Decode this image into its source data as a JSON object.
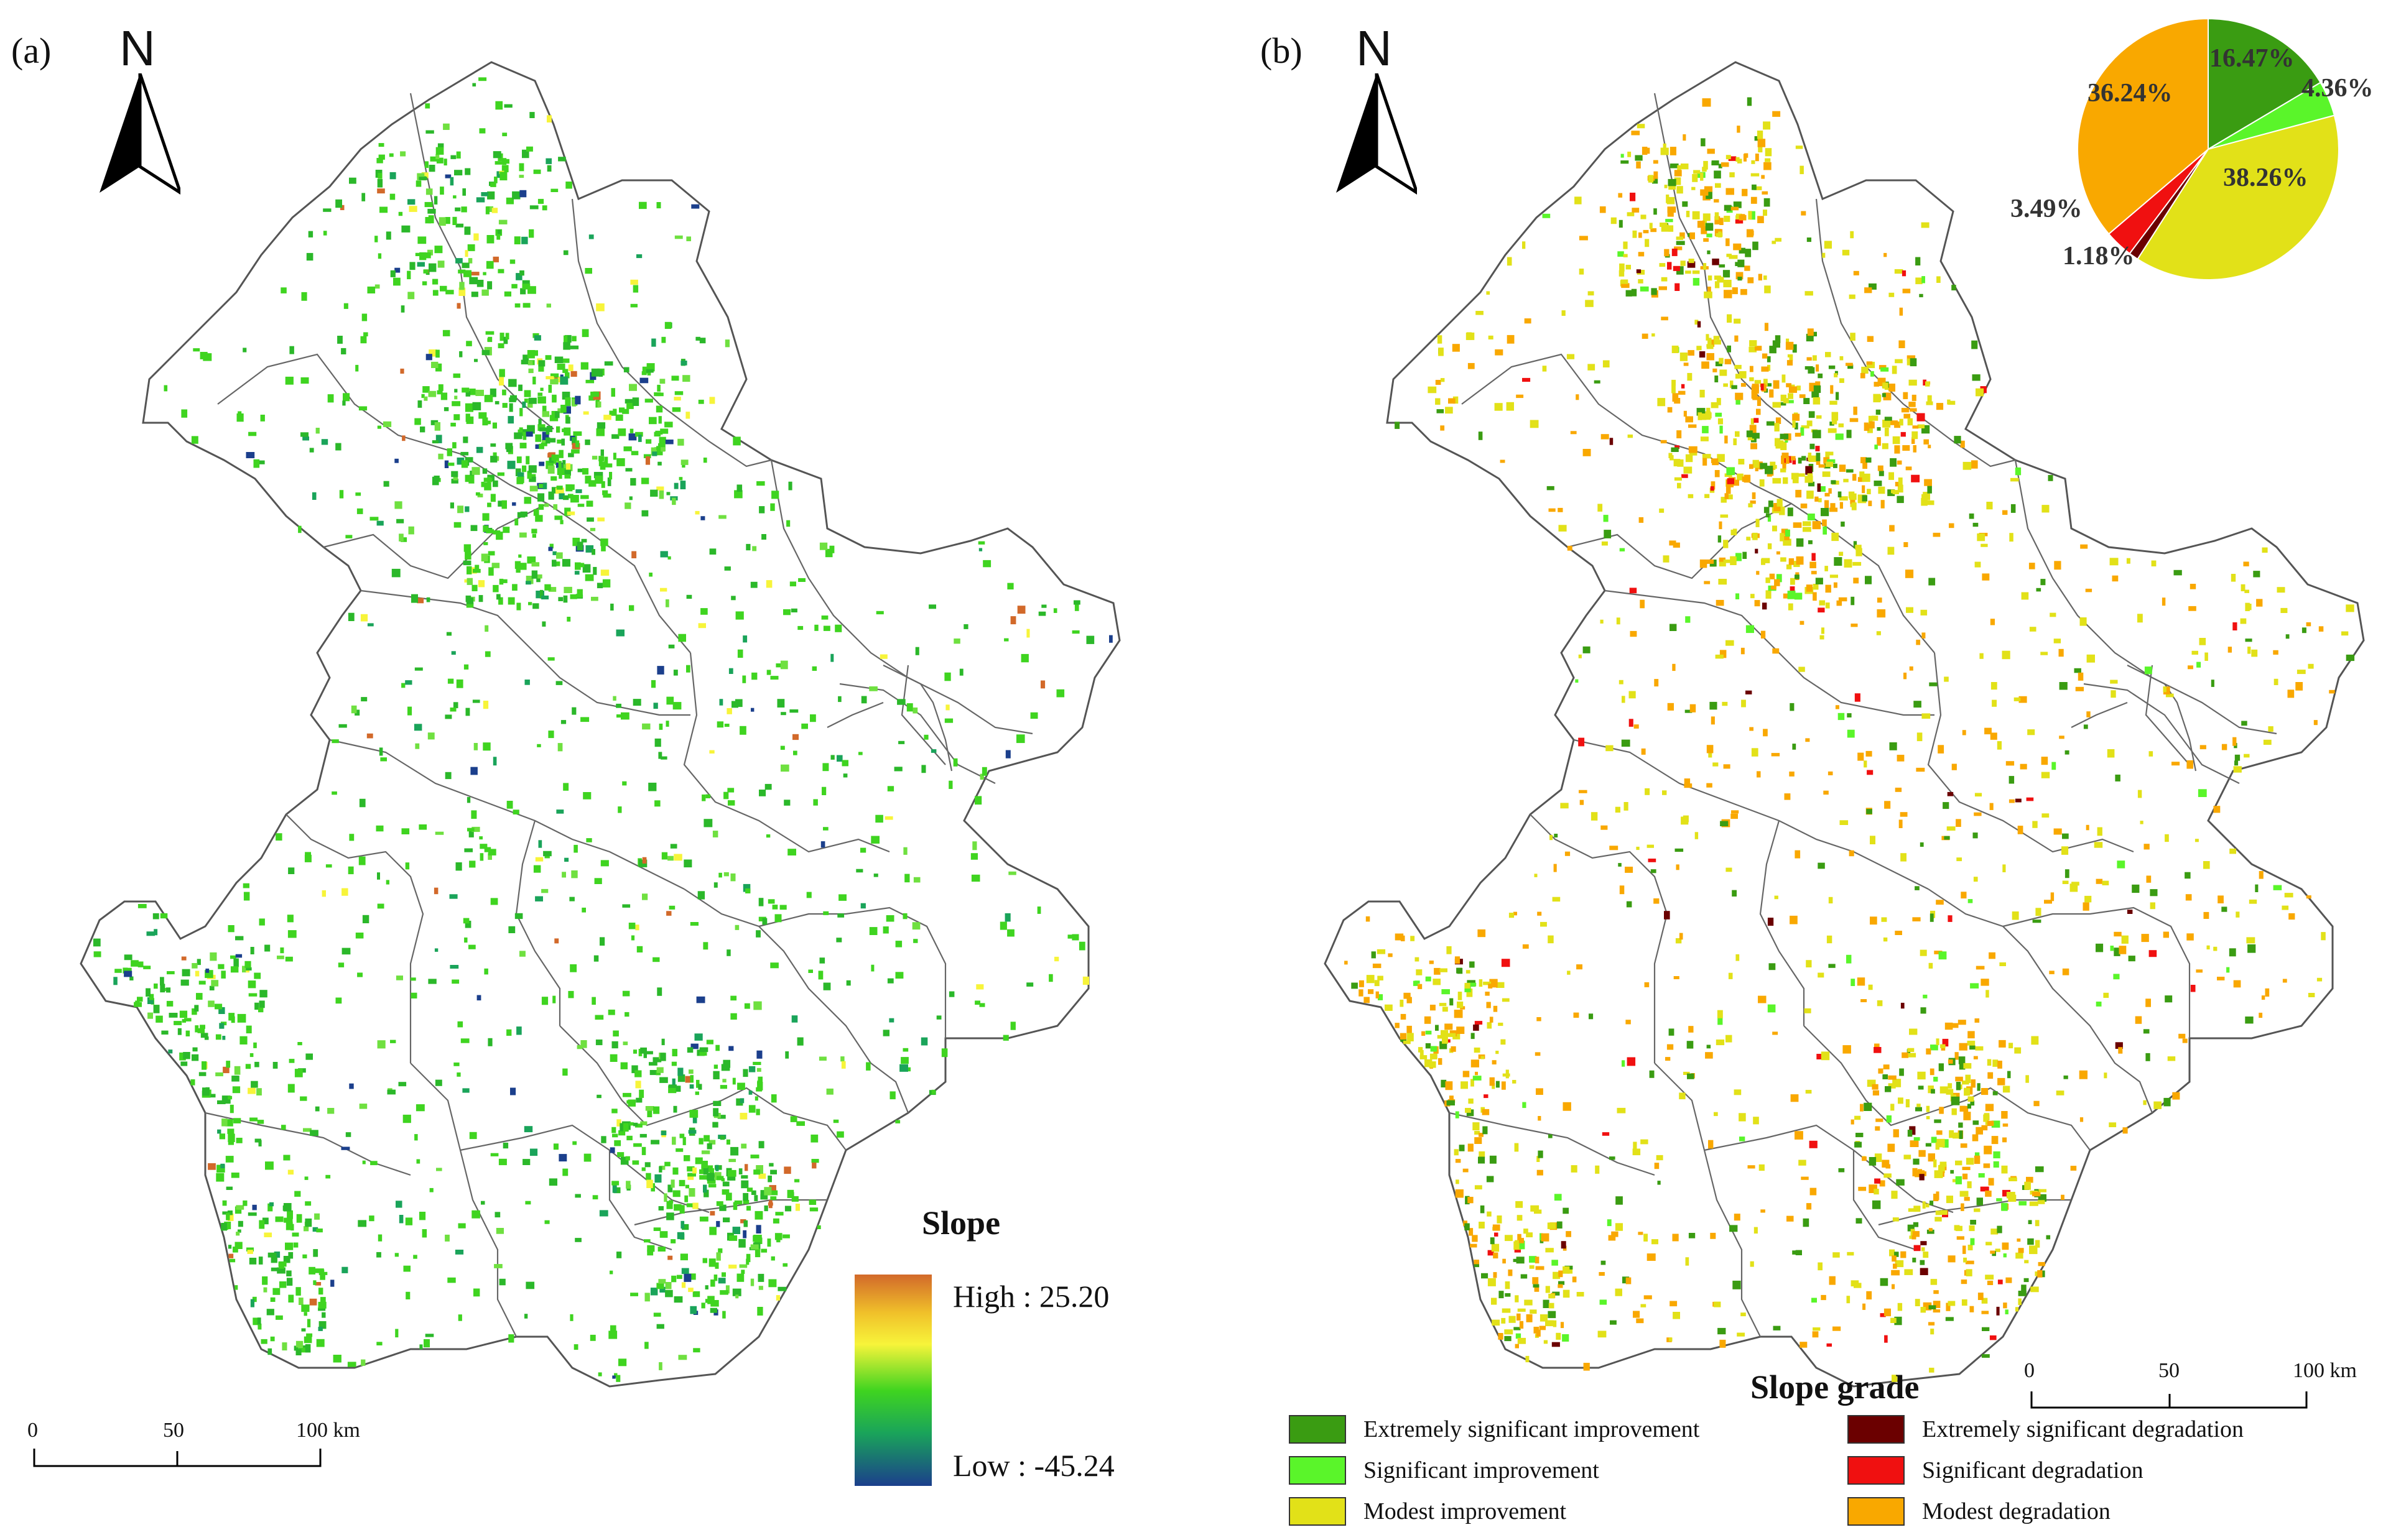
{
  "panel_a": {
    "label": "(a)",
    "north": "N",
    "scale": {
      "zero": "0",
      "mid": "50",
      "end": "100 km"
    },
    "ramp": {
      "title": "Slope",
      "high": "High : 25.20",
      "low": "Low : -45.24",
      "colors": [
        "#d2692a",
        "#f0c02a",
        "#f7f43a",
        "#3fd420",
        "#1aa45a",
        "#1b3f8c"
      ]
    }
  },
  "panel_b": {
    "label": "(b)",
    "north": "N",
    "scale": {
      "zero": "0",
      "mid": "50",
      "end": "100 km"
    },
    "legend_title": "Slope grade",
    "legend": [
      {
        "label": "Extremely significant improvement",
        "color": "#3a9c12"
      },
      {
        "label": "Significant improvement",
        "color": "#5af52a"
      },
      {
        "label": "Modest improvement",
        "color": "#e2e118"
      },
      {
        "label": "Extremely significant degradation",
        "color": "#6b0000"
      },
      {
        "label": "Significant degradation",
        "color": "#f01010"
      },
      {
        "label": "Modest degradation",
        "color": "#f9a800"
      }
    ]
  },
  "chart_data": {
    "type": "pie",
    "slices": [
      {
        "category": "Extremely significant improvement",
        "value": 16.47,
        "label": "16.47%",
        "color": "#3a9c12"
      },
      {
        "category": "Significant improvement",
        "value": 4.36,
        "label": "4.36%",
        "color": "#5af52a"
      },
      {
        "category": "Modest improvement",
        "value": 38.26,
        "label": "38.26%",
        "color": "#e2e118"
      },
      {
        "category": "Extremely significant degradation",
        "value": 1.18,
        "label": "1.18%",
        "color": "#6b0000"
      },
      {
        "category": "Significant degradation",
        "value": 3.49,
        "label": "3.49%",
        "color": "#f01010"
      },
      {
        "category": "Modest degradation",
        "value": 36.24,
        "label": "36.24%",
        "color": "#f9a800"
      }
    ]
  }
}
